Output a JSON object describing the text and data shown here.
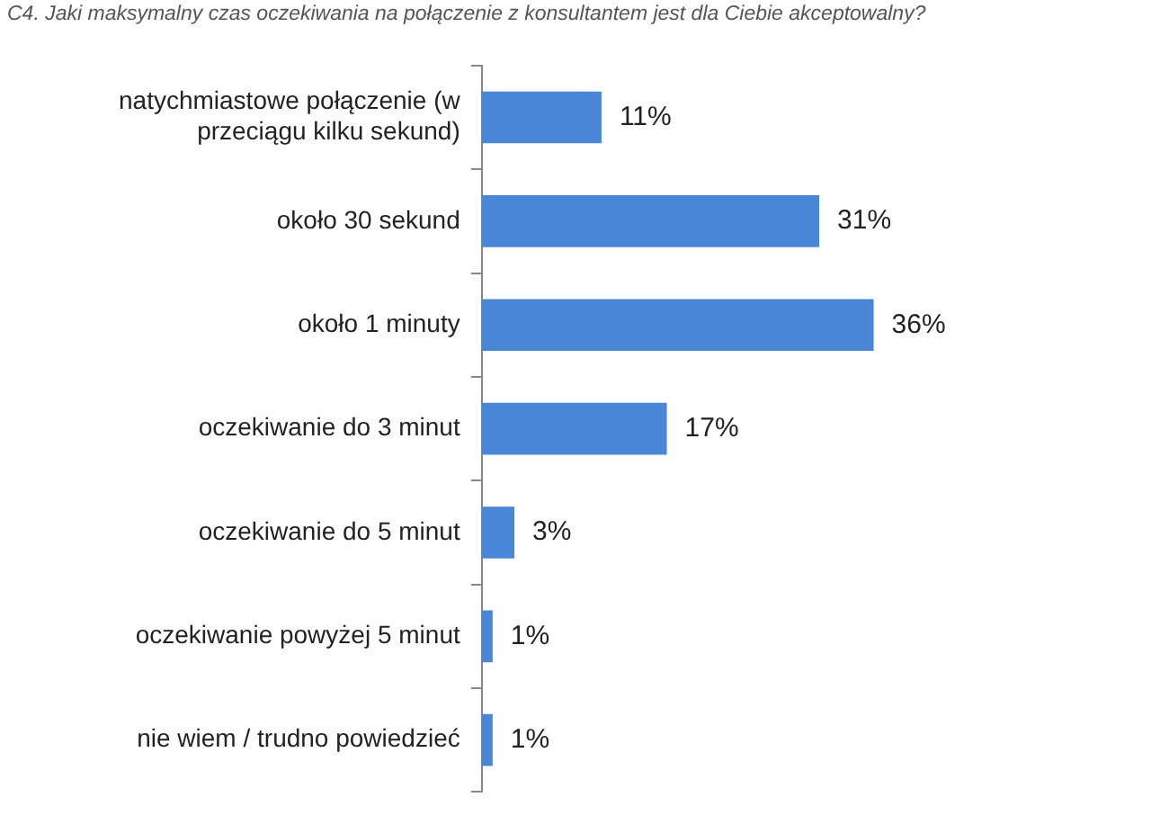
{
  "chart_data": {
    "type": "bar",
    "orientation": "horizontal",
    "title": "C4. Jaki maksymalny czas oczekiwania na połączenie z konsultantem jest dla Ciebie akceptowalny?",
    "categories": [
      "natychmiastowe połączenie (w\nprzeciągu kilku sekund)",
      "około 30 sekund",
      "około 1 minuty",
      "oczekiwanie do 3 minut",
      "oczekiwanie do 5 minut",
      "oczekiwanie powyżej 5 minut",
      "nie wiem / trudno powiedzieć"
    ],
    "values": [
      11,
      31,
      36,
      17,
      3,
      1,
      1
    ],
    "value_labels": [
      "11%",
      "31%",
      "36%",
      "17%",
      "3%",
      "1%",
      "1%"
    ],
    "color": "#4a86d6",
    "grid": false,
    "legend": false
  }
}
